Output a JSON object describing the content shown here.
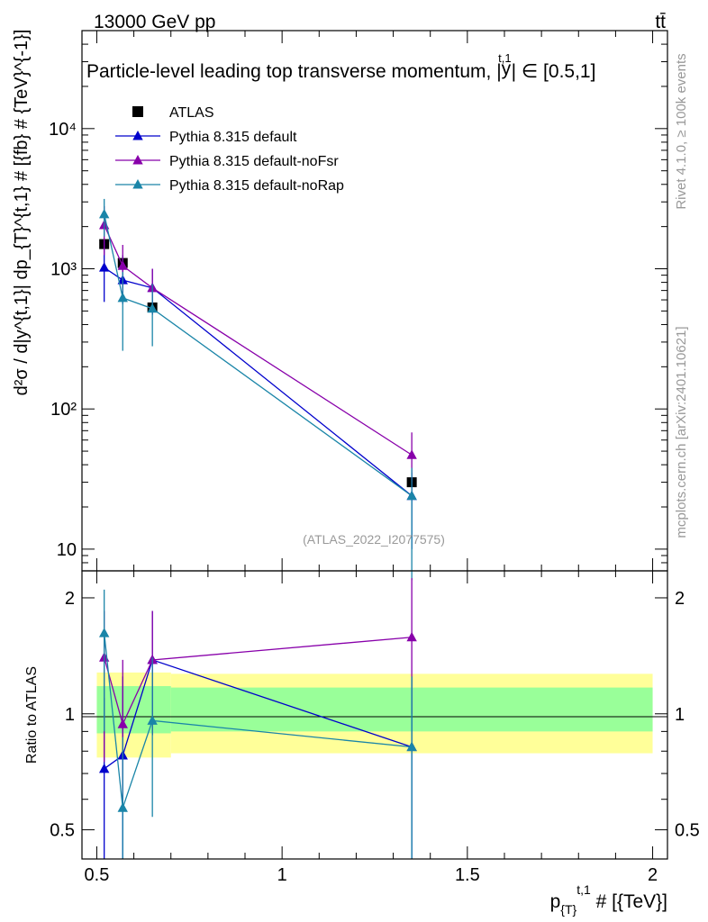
{
  "header": {
    "energy_label": "13000 GeV pp",
    "process_label": "tt̄"
  },
  "side_labels": {
    "rivet": "Rivet 4.1.0, ≥ 100k events",
    "mcplots": "mcplots.cern.ch [arXiv:2401.10621]"
  },
  "watermark": "(ATLAS_2022_I2077575)",
  "chart_data": [
    {
      "type": "scatter",
      "panel": "main",
      "title": "Particle-level leading top transverse momentum, |y^{t,1}| ∈ [0.5,1]",
      "title_prefix": "Particle-level leading top transverse momentum, |",
      "title_y": "y",
      "title_sup": "t,1",
      "title_suffix": "| ∈ [0.5,1]",
      "ylabel": "d²σ / d|y^{t,1}| dp_{T}^{t,1} # [{fb} # {TeV}^{-1}]",
      "yscale": "log",
      "ylim": [
        7,
        50000
      ],
      "xlim": [
        0.46,
        2.04
      ],
      "yticks": [
        {
          "value": 10,
          "label": "10"
        },
        {
          "value": 100,
          "label": "10²"
        },
        {
          "value": 1000,
          "label": "10³"
        },
        {
          "value": 10000,
          "label": "10⁴"
        }
      ],
      "legend_position": "top-left",
      "series": [
        {
          "name": "ATLAS",
          "color": "#000000",
          "marker": "square",
          "x": [
            0.52,
            0.57,
            0.65,
            1.35
          ],
          "y": [
            1500,
            1100,
            530,
            30
          ]
        },
        {
          "name": "Pythia 8.315 default",
          "color": "#0000cc",
          "marker": "triangle",
          "x": [
            0.52,
            0.57,
            0.65,
            1.35
          ],
          "y": [
            1020,
            830,
            730,
            24
          ],
          "err_lo": [
            580,
            560,
            470,
            10
          ],
          "err_hi": [
            1600,
            1250,
            1000,
            35
          ]
        },
        {
          "name": "Pythia 8.315 default-noFsr",
          "color": "#8800aa",
          "marker": "triangle",
          "x": [
            0.52,
            0.57,
            0.65,
            1.35
          ],
          "y": [
            2050,
            1050,
            730,
            47
          ],
          "err_lo": [
            1250,
            620,
            470,
            30
          ],
          "err_hi": [
            2800,
            1480,
            1000,
            68
          ]
        },
        {
          "name": "Pythia 8.315 default-noRap",
          "color": "#1a85a8",
          "marker": "triangle",
          "x": [
            0.52,
            0.57,
            0.65,
            1.35
          ],
          "y": [
            2450,
            620,
            520,
            24
          ],
          "err_lo": [
            1700,
            260,
            280,
            6
          ],
          "err_hi": [
            3150,
            950,
            780,
            38
          ]
        }
      ]
    },
    {
      "type": "scatter",
      "panel": "ratio",
      "ylabel": "Ratio to ATLAS",
      "xlabel": "p_{T}^{t,1} # [{TeV}]",
      "xlabel_main": "p",
      "xlabel_sub": "{T}",
      "xlabel_sup": "t,1",
      "xlabel_suffix": " # [{TeV}]",
      "yscale": "log",
      "ylim": [
        0.42,
        2.35
      ],
      "xlim": [
        0.46,
        2.04
      ],
      "yticks": [
        {
          "value": 0.5,
          "label": "0.5"
        },
        {
          "value": 1,
          "label": "1"
        },
        {
          "value": 2,
          "label": "2"
        }
      ],
      "xticks": [
        {
          "value": 0.5,
          "label": "0.5"
        },
        {
          "value": 1,
          "label": "1"
        },
        {
          "value": 1.5,
          "label": "1.5"
        },
        {
          "value": 2,
          "label": "2"
        }
      ],
      "bands": [
        {
          "name": "total-uncertainty",
          "color": "#ffff99",
          "segments": [
            {
              "x0": 0.5,
              "x1": 0.7,
              "lo": 0.77,
              "hi": 1.28
            },
            {
              "x0": 0.7,
              "x1": 2.0,
              "lo": 0.79,
              "hi": 1.27
            }
          ]
        },
        {
          "name": "stat-uncertainty",
          "color": "#99ff99",
          "segments": [
            {
              "x0": 0.5,
              "x1": 0.7,
              "lo": 0.89,
              "hi": 1.18
            },
            {
              "x0": 0.7,
              "x1": 2.0,
              "lo": 0.9,
              "hi": 1.17
            }
          ]
        }
      ],
      "series": [
        {
          "name": "Pythia 8.315 default",
          "color": "#0000cc",
          "marker": "triangle",
          "x": [
            0.52,
            0.57,
            0.65,
            1.35
          ],
          "y": [
            0.72,
            0.78,
            1.38,
            0.82
          ],
          "err_lo": [
            0.3,
            0.3,
            0.88,
            0.3
          ],
          "err_hi": [
            1.1,
            1.25,
            1.85,
            1.25
          ]
        },
        {
          "name": "Pythia 8.315 default-noFsr",
          "color": "#8800aa",
          "marker": "triangle",
          "x": [
            0.52,
            0.57,
            0.65,
            1.35
          ],
          "y": [
            1.4,
            0.94,
            1.38,
            1.58
          ],
          "err_lo": [
            0.75,
            0.56,
            0.88,
            1.0
          ],
          "err_hi": [
            1.85,
            1.38,
            1.85,
            2.25
          ]
        },
        {
          "name": "Pythia 8.315 default-noRap",
          "color": "#1a85a8",
          "marker": "triangle",
          "x": [
            0.52,
            0.57,
            0.65,
            1.35
          ],
          "y": [
            1.62,
            0.57,
            0.96,
            0.82
          ],
          "err_lo": [
            0.9,
            0.3,
            0.54,
            0.3
          ],
          "err_hi": [
            2.1,
            0.87,
            1.4,
            1.25
          ]
        }
      ]
    }
  ]
}
